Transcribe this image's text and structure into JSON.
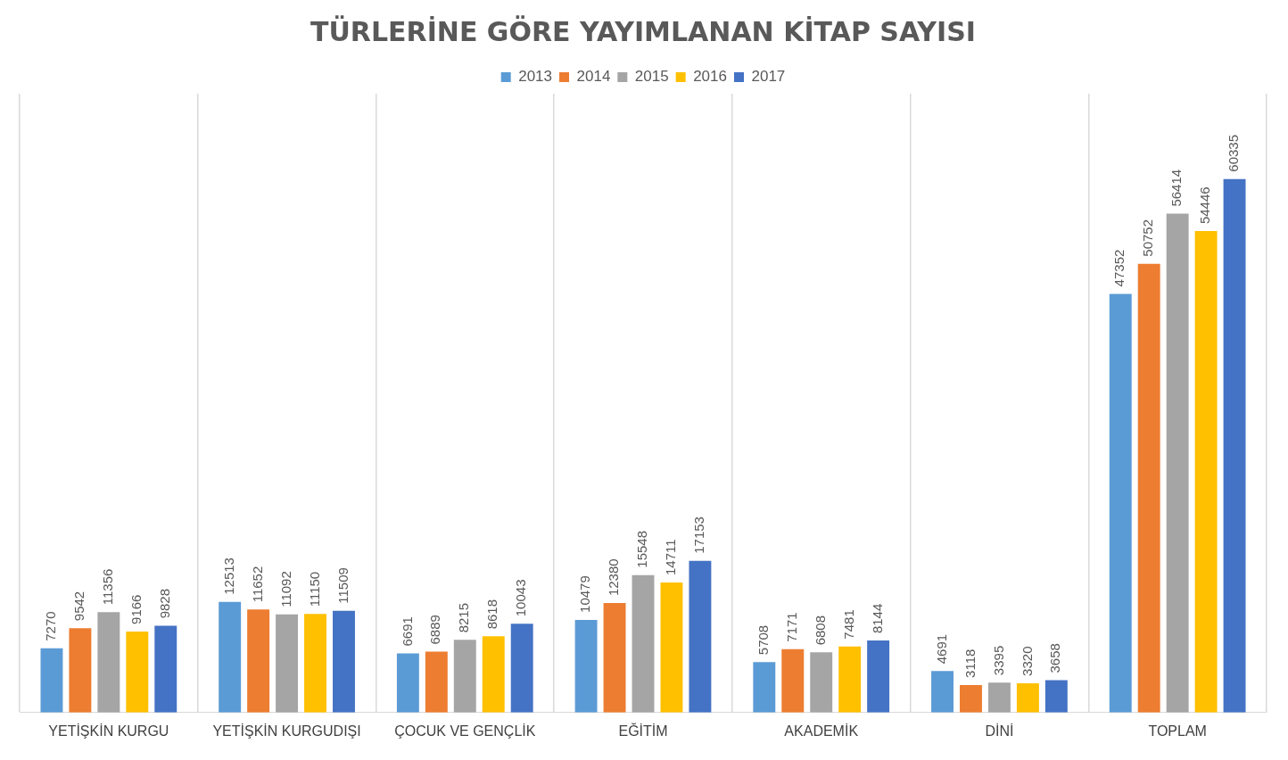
{
  "chart_data": {
    "type": "bar",
    "title": "TÜRLERİNE GÖRE YAYIMLANAN KİTAP SAYISI",
    "categories": [
      "YETİŞKİN KURGU",
      "YETİŞKİN KURGUDIŞI",
      "ÇOCUK VE GENÇLİK",
      "EĞİTİM",
      "AKADEMİK",
      "DİNİ",
      "TOPLAM"
    ],
    "series": [
      {
        "name": "2013",
        "color": "#5b9bd5",
        "values": [
          7270,
          12513,
          6691,
          10479,
          5708,
          4691,
          47352
        ]
      },
      {
        "name": "2014",
        "color": "#ed7d31",
        "values": [
          9542,
          11652,
          6889,
          12380,
          7171,
          3118,
          50752
        ]
      },
      {
        "name": "2015",
        "color": "#a5a5a5",
        "values": [
          11356,
          11092,
          8215,
          15548,
          6808,
          3395,
          56414
        ]
      },
      {
        "name": "2016",
        "color": "#ffc000",
        "values": [
          9166,
          11150,
          8618,
          14711,
          7481,
          3320,
          54446
        ]
      },
      {
        "name": "2017",
        "color": "#4472c4",
        "values": [
          9828,
          11509,
          10043,
          17153,
          8144,
          3658,
          60335
        ]
      }
    ],
    "data_labels": true,
    "grid": "x",
    "legend": "top"
  }
}
